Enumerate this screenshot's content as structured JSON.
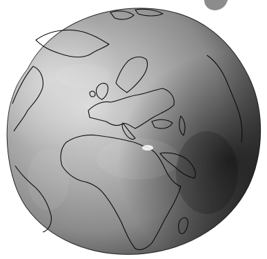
{
  "image": {
    "subject": "geoid-globe",
    "colors": {
      "background": "#ffffff",
      "light": "#d8d8d8",
      "mid": "#8a8a8a",
      "dark": "#1e1e1e",
      "coastline": "#0a0a0a",
      "corner_blob": "#8c8c8c"
    }
  }
}
